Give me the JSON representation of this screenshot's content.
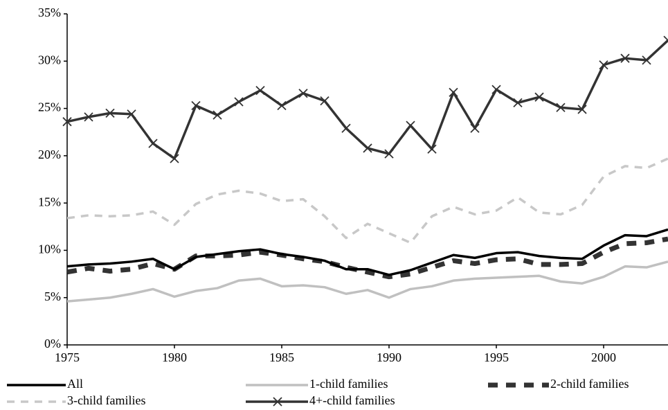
{
  "chart_data": {
    "type": "line",
    "x": [
      1975,
      1976,
      1977,
      1978,
      1979,
      1980,
      1981,
      1982,
      1983,
      1984,
      1985,
      1986,
      1987,
      1988,
      1989,
      1990,
      1991,
      1992,
      1993,
      1994,
      1995,
      1996,
      1997,
      1998,
      1999,
      2000,
      2001,
      2002,
      2003
    ],
    "xlim": [
      1975,
      2003
    ],
    "xticks": [
      1975,
      1980,
      1985,
      1990,
      1995,
      2000
    ],
    "ylim": [
      0,
      35
    ],
    "yticks": [
      {
        "value": 0,
        "label": "0%"
      },
      {
        "value": 5,
        "label": "5%"
      },
      {
        "value": 10,
        "label": "10%"
      },
      {
        "value": 15,
        "label": "15%"
      },
      {
        "value": 20,
        "label": "20%"
      },
      {
        "value": 25,
        "label": "25%"
      },
      {
        "value": 30,
        "label": "30%"
      },
      {
        "value": 35,
        "label": "35%"
      }
    ],
    "grid": false,
    "series": [
      {
        "name": "All",
        "color": "#000000",
        "line_style": "solid",
        "values": [
          8.3,
          8.5,
          8.6,
          8.8,
          9.1,
          8.0,
          9.3,
          9.6,
          9.9,
          10.1,
          9.6,
          9.3,
          8.9,
          8.0,
          8.0,
          7.4,
          7.9,
          8.7,
          9.5,
          9.2,
          9.7,
          9.8,
          9.4,
          9.2,
          9.1,
          10.5,
          11.6,
          11.5,
          12.2
        ]
      },
      {
        "name": "1-child families",
        "color": "#c0c0c0",
        "line_style": "solid",
        "values": [
          4.6,
          4.8,
          5.0,
          5.4,
          5.9,
          5.1,
          5.7,
          6.0,
          6.8,
          7.0,
          6.2,
          6.3,
          6.1,
          5.4,
          5.8,
          5.0,
          5.9,
          6.2,
          6.8,
          7.0,
          7.1,
          7.2,
          7.3,
          6.7,
          6.5,
          7.2,
          8.3,
          8.2,
          8.8
        ]
      },
      {
        "name": "2-child families",
        "color": "#333333",
        "line_style": "dashed",
        "values": [
          7.7,
          8.1,
          7.8,
          8.0,
          8.6,
          8.0,
          9.4,
          9.4,
          9.5,
          9.8,
          9.5,
          9.1,
          8.8,
          8.2,
          7.7,
          7.2,
          7.5,
          8.2,
          8.9,
          8.6,
          9.0,
          9.1,
          8.5,
          8.5,
          8.6,
          9.8,
          10.7,
          10.8,
          11.2
        ]
      },
      {
        "name": "3-child families",
        "color": "#c8c8c8",
        "line_style": "dashed",
        "values": [
          13.4,
          13.7,
          13.6,
          13.7,
          14.1,
          12.7,
          14.9,
          15.9,
          16.3,
          16.0,
          15.2,
          15.4,
          13.6,
          11.3,
          12.8,
          11.8,
          10.8,
          13.6,
          14.6,
          13.8,
          14.2,
          15.6,
          14.0,
          13.8,
          14.8,
          17.8,
          18.9,
          18.7,
          19.7
        ]
      },
      {
        "name": "4+-child families",
        "color": "#333333",
        "line_style": "solid",
        "marker": "x",
        "values": [
          23.6,
          24.1,
          24.5,
          24.4,
          21.3,
          19.7,
          25.3,
          24.3,
          25.7,
          26.9,
          25.3,
          26.6,
          25.8,
          22.9,
          20.8,
          20.2,
          23.2,
          20.7,
          26.7,
          22.9,
          27.0,
          25.6,
          26.2,
          25.1,
          24.9,
          29.6,
          30.3,
          30.1,
          32.2
        ]
      }
    ]
  }
}
